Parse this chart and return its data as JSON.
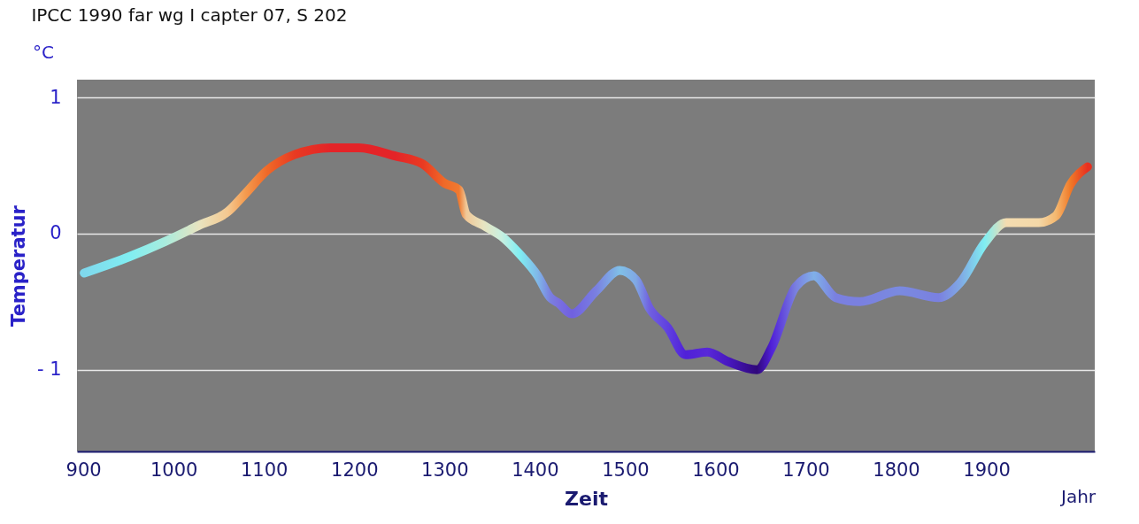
{
  "chart_data": {
    "type": "line",
    "title": "IPCC 1990 far wg I capter 07, S 202",
    "xlabel": "Zeit",
    "ylabel": "Temperatur",
    "annotations": [
      "°C",
      "Jahr"
    ],
    "xlim": [
      893,
      2020
    ],
    "xticks": [
      900,
      1000,
      1100,
      1200,
      1300,
      1400,
      1500,
      1600,
      1700,
      1800,
      1900
    ],
    "ylim": [
      -1.6,
      1.13
    ],
    "yticks": [
      {
        "value": -1,
        "label": "- 1"
      },
      0,
      1
    ],
    "grid": "y",
    "series": [
      {
        "x": [
          901,
          951,
          990,
          1028,
          1060,
          1079,
          1103,
          1134,
          1174,
          1205,
          1245,
          1276,
          1300,
          1316,
          1324,
          1343,
          1363,
          1383,
          1403,
          1417,
          1426,
          1441,
          1468,
          1494,
          1512,
          1527,
          1547,
          1567,
          1591,
          1614,
          1646,
          1662,
          1689,
          1709,
          1733,
          1760,
          1804,
          1847,
          1871,
          1898,
          1922,
          1958,
          1977,
          1993,
          2012
        ],
        "values": [
          -0.29,
          -0.17,
          -0.06,
          0.06,
          0.16,
          0.29,
          0.46,
          0.58,
          0.63,
          0.63,
          0.57,
          0.51,
          0.37,
          0.32,
          0.14,
          0.06,
          -0.02,
          -0.15,
          -0.31,
          -0.47,
          -0.51,
          -0.59,
          -0.42,
          -0.27,
          -0.34,
          -0.55,
          -0.69,
          -0.89,
          -0.87,
          -0.94,
          -1.0,
          -0.84,
          -0.39,
          -0.31,
          -0.47,
          -0.5,
          -0.42,
          -0.47,
          -0.36,
          -0.07,
          0.08,
          0.08,
          0.13,
          0.36,
          0.49
        ],
        "colors": [
          "#7fd8ec",
          "#80eef2",
          "#a8ecde",
          "#e8e4c0",
          "#f4c890",
          "#f49c50",
          "#f06a28",
          "#e83a22",
          "#e42428",
          "#e42428",
          "#e42428",
          "#e83a22",
          "#f06a28",
          "#f07a30",
          "#f0c898",
          "#e8e4c0",
          "#c8f0e0",
          "#80eef2",
          "#80b8e8",
          "#7a80e0",
          "#7a70e0",
          "#7060e0",
          "#7a80e0",
          "#80c0e8",
          "#80a8e4",
          "#7060e0",
          "#6040e0",
          "#5020d8",
          "#5828d8",
          "#4818c0",
          "#30087a",
          "#5020d8",
          "#7a80e0",
          "#80b0e8",
          "#7a80e0",
          "#7a80e0",
          "#7a8ae0",
          "#7a80e0",
          "#80a8e4",
          "#80eef2",
          "#f4dcb0",
          "#f4d8a8",
          "#f4b870",
          "#f07a28",
          "#e83020"
        ]
      }
    ]
  }
}
